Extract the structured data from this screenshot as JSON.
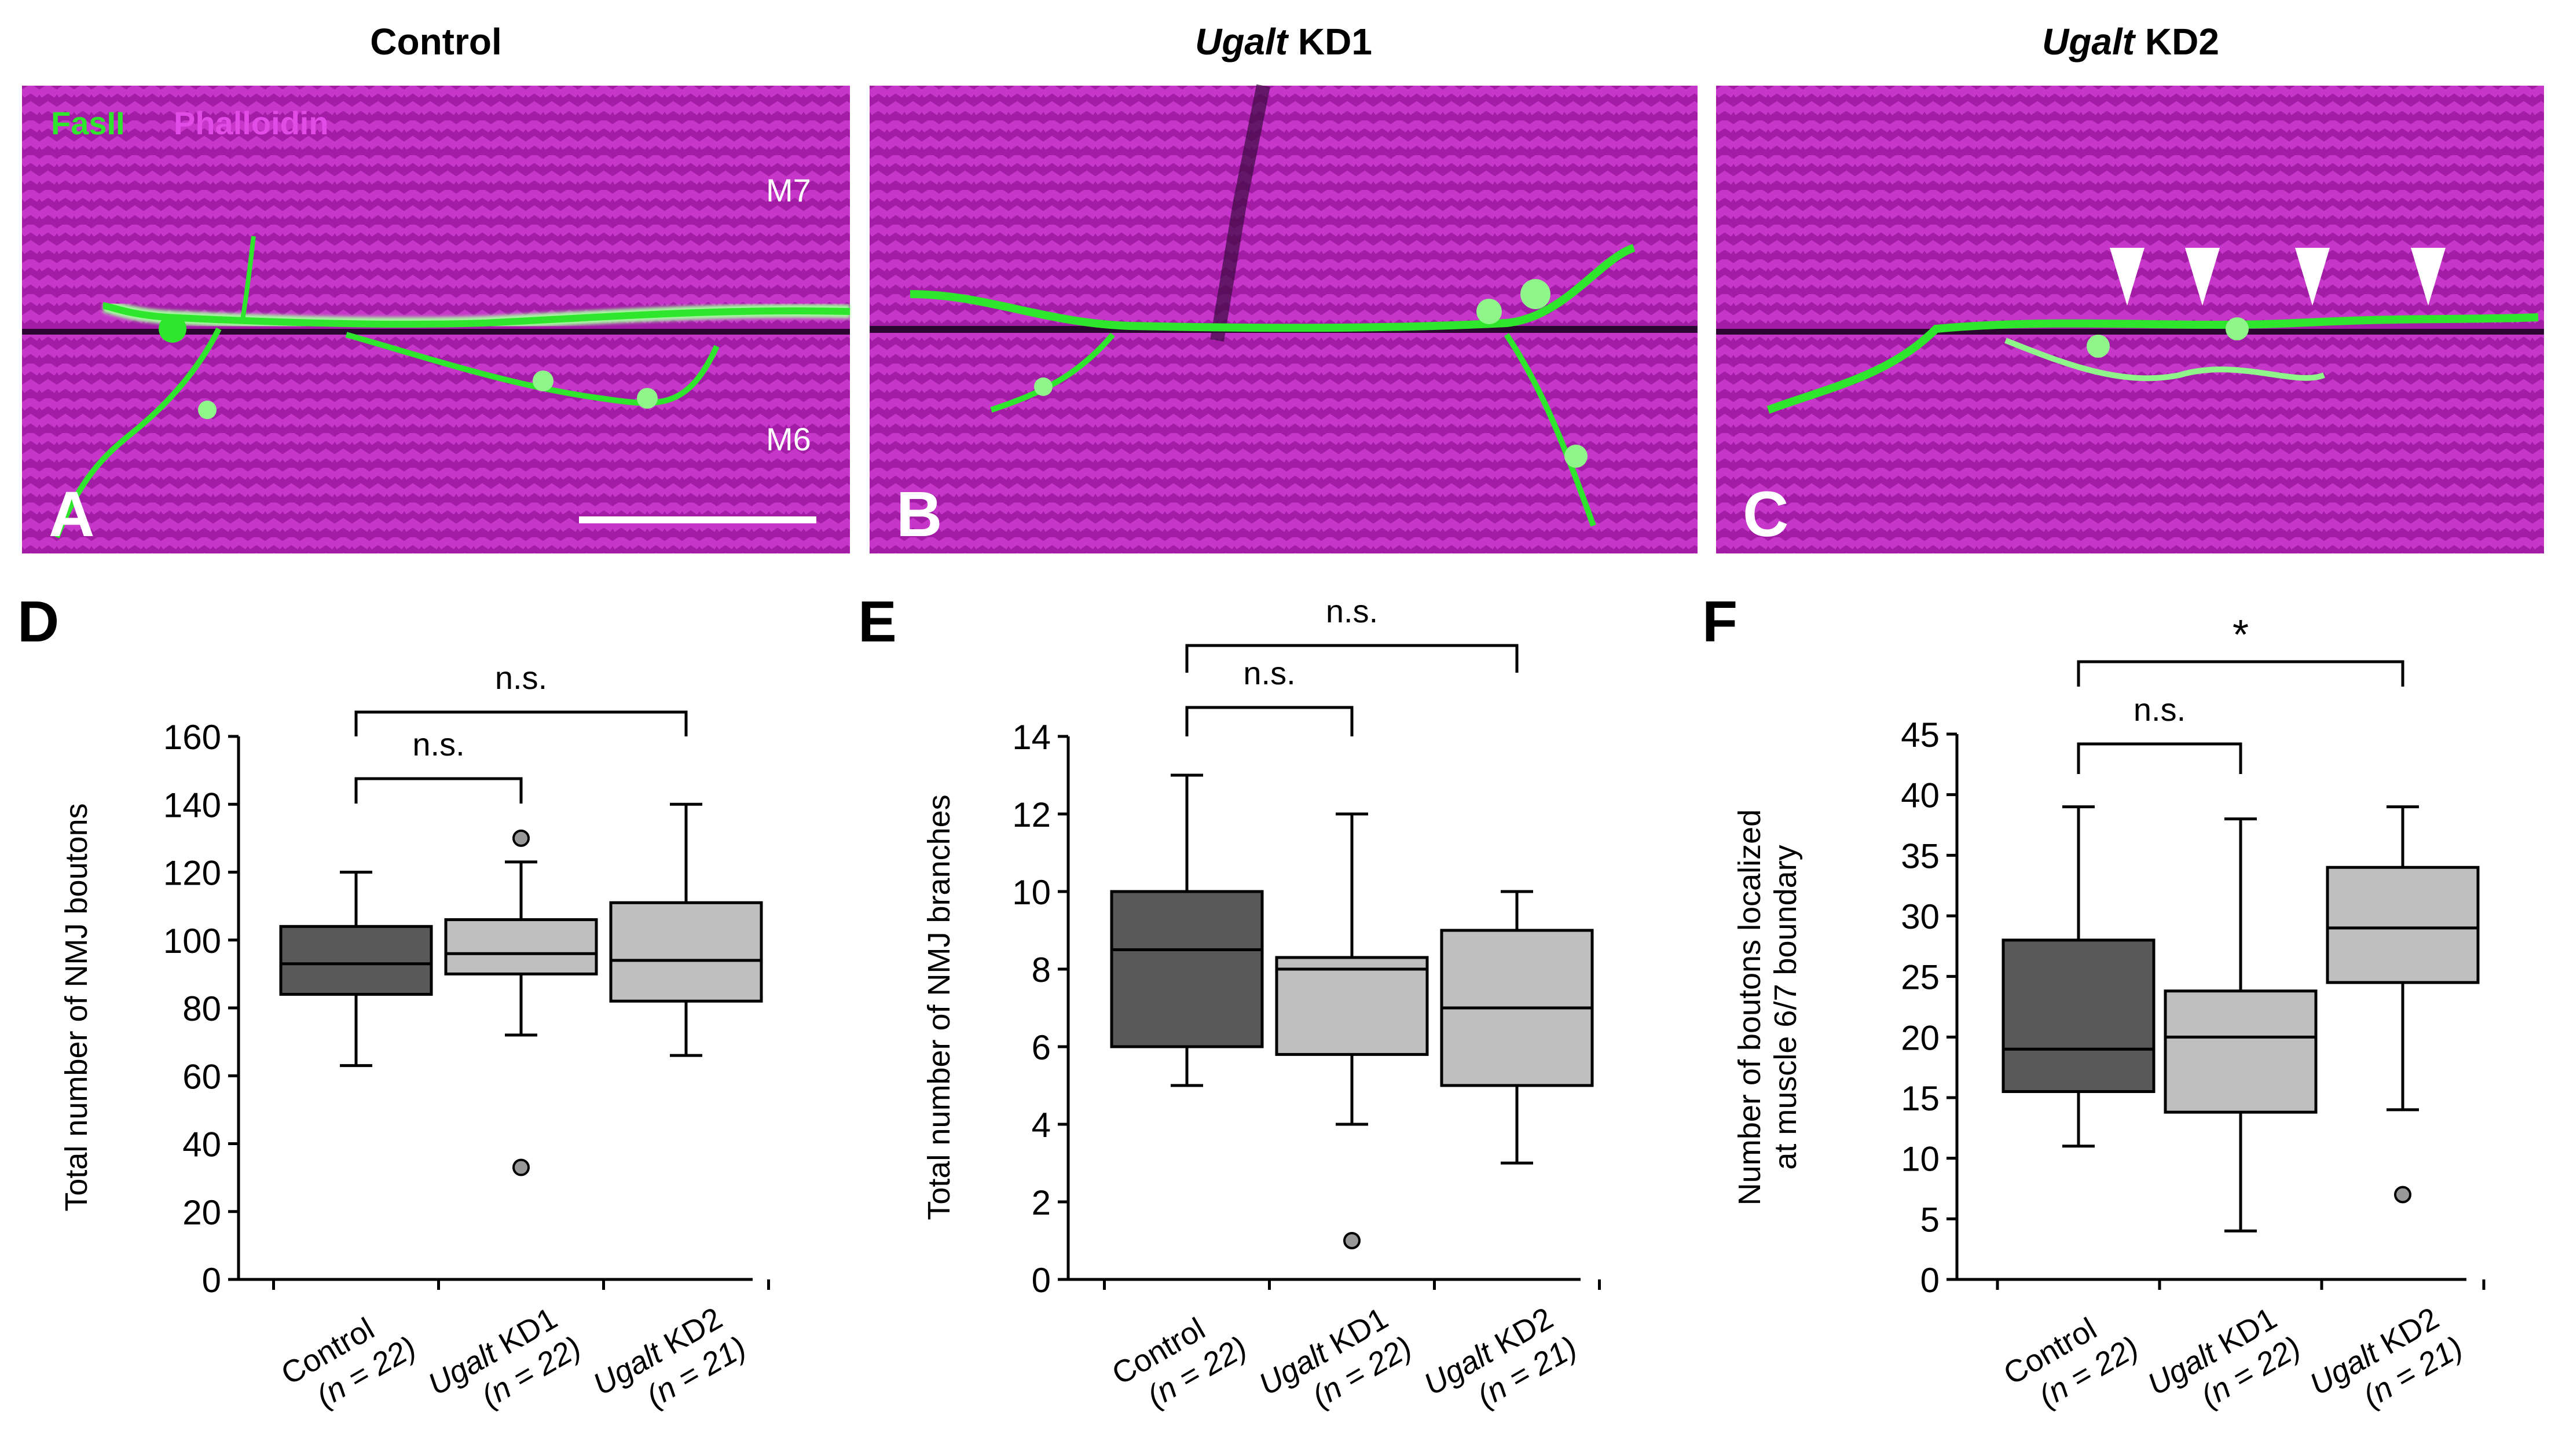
{
  "figure": {
    "micrographs": [
      {
        "letter": "A",
        "title_gene": "",
        "title_rest": "Control",
        "muscle_top": "M7",
        "muscle_bottom": "M6",
        "stain_1": "FasII",
        "stain_2": "Phalloidin"
      },
      {
        "letter": "B",
        "title_gene": "Ugalt",
        "title_rest": " KD1",
        "muscle_top": "",
        "muscle_bottom": "",
        "stain_1": "",
        "stain_2": ""
      },
      {
        "letter": "C",
        "title_gene": "Ugalt",
        "title_rest": " KD2",
        "muscle_top": "",
        "muscle_bottom": "",
        "stain_1": "",
        "stain_2": ""
      }
    ],
    "colors": {
      "muscle": "#a21ca6",
      "muscle_stripe": "#c637c9",
      "nerve": "#2ee62b",
      "nerve_light": "#a6f7a0",
      "box_dark": "#595959",
      "box_light": "#bfbfbf",
      "outlier": "#999999"
    }
  },
  "chart_data": [
    {
      "type": "box",
      "panel": "D",
      "ylabel": [
        "Total number of NMJ boutons"
      ],
      "ylim": [
        0,
        160
      ],
      "yticks": [
        0,
        20,
        40,
        60,
        80,
        100,
        120,
        140,
        160
      ],
      "categories": [
        {
          "gene": "",
          "rest": "Control",
          "n": "(n = 22)"
        },
        {
          "gene": "Ugalt",
          "rest": " KD1",
          "n": "(n = 22)"
        },
        {
          "gene": "Ugalt",
          "rest": " KD2",
          "n": "(n = 21)"
        }
      ],
      "boxes": [
        {
          "whisker_low": 63,
          "q1": 84,
          "median": 93,
          "q3": 104,
          "whisker_high": 120,
          "outliers": [],
          "shade": "dark"
        },
        {
          "whisker_low": 72,
          "q1": 90,
          "median": 96,
          "q3": 106,
          "whisker_high": 123,
          "outliers": [
            130,
            33
          ],
          "shade": "light"
        },
        {
          "whisker_low": 66,
          "q1": 82,
          "median": 94,
          "q3": 111,
          "whisker_high": 140,
          "outliers": [],
          "shade": "light"
        }
      ],
      "comparisons": [
        {
          "from": 0,
          "to": 1,
          "label": "n.s."
        },
        {
          "from": 0,
          "to": 2,
          "label": "n.s."
        }
      ]
    },
    {
      "type": "box",
      "panel": "E",
      "ylabel": [
        "Total number of NMJ branches"
      ],
      "ylim": [
        0,
        14
      ],
      "yticks": [
        0,
        2,
        4,
        6,
        8,
        10,
        12,
        14
      ],
      "categories": [
        {
          "gene": "",
          "rest": "Control",
          "n": "(n = 22)"
        },
        {
          "gene": "Ugalt",
          "rest": " KD1",
          "n": "(n = 22)"
        },
        {
          "gene": "Ugalt",
          "rest": " KD2",
          "n": "(n = 21)"
        }
      ],
      "boxes": [
        {
          "whisker_low": 5,
          "q1": 6,
          "median": 8.5,
          "q3": 10,
          "whisker_high": 13,
          "outliers": [],
          "shade": "dark"
        },
        {
          "whisker_low": 4,
          "q1": 5.8,
          "median": 8,
          "q3": 8.3,
          "whisker_high": 12,
          "outliers": [
            1
          ],
          "shade": "light"
        },
        {
          "whisker_low": 3,
          "q1": 5,
          "median": 7,
          "q3": 9,
          "whisker_high": 10,
          "outliers": [],
          "shade": "light"
        }
      ],
      "comparisons": [
        {
          "from": 0,
          "to": 1,
          "label": "n.s."
        },
        {
          "from": 0,
          "to": 2,
          "label": "n.s."
        }
      ]
    },
    {
      "type": "box",
      "panel": "F",
      "ylabel": [
        "Number of boutons localized",
        "at muscle 6/7 boundary"
      ],
      "ylim": [
        0,
        45
      ],
      "yticks": [
        0,
        5,
        10,
        15,
        20,
        25,
        30,
        35,
        40,
        45
      ],
      "categories": [
        {
          "gene": "",
          "rest": "Control",
          "n": "(n = 22)"
        },
        {
          "gene": "Ugalt",
          "rest": " KD1",
          "n": "(n = 22)"
        },
        {
          "gene": "Ugalt",
          "rest": " KD2",
          "n": "(n = 21)"
        }
      ],
      "boxes": [
        {
          "whisker_low": 11,
          "q1": 15.5,
          "median": 19,
          "q3": 28,
          "whisker_high": 39,
          "outliers": [],
          "shade": "dark"
        },
        {
          "whisker_low": 4,
          "q1": 13.8,
          "median": 20,
          "q3": 23.8,
          "whisker_high": 38,
          "outliers": [],
          "shade": "light"
        },
        {
          "whisker_low": 14,
          "q1": 24.5,
          "median": 29,
          "q3": 34,
          "whisker_high": 39,
          "outliers": [
            7
          ],
          "shade": "light"
        }
      ],
      "comparisons": [
        {
          "from": 0,
          "to": 1,
          "label": "n.s."
        },
        {
          "from": 0,
          "to": 2,
          "label": "*"
        }
      ]
    }
  ]
}
